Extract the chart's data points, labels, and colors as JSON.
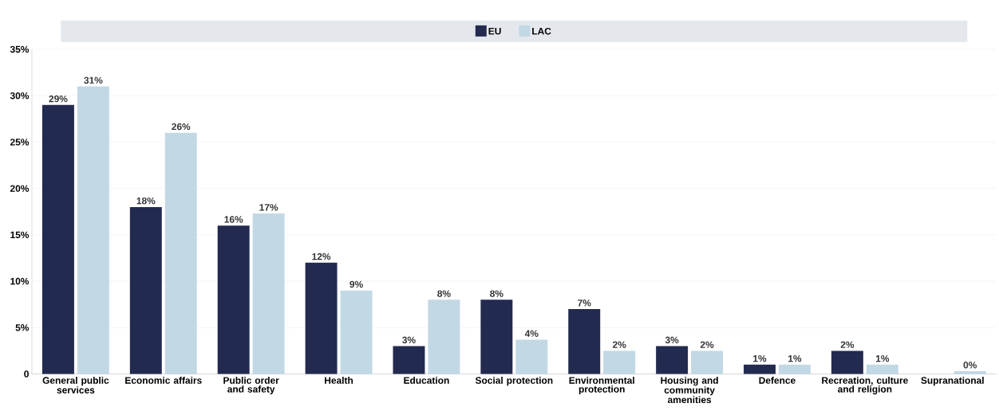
{
  "chart_data": {
    "type": "bar",
    "categories": [
      "General public services",
      "Economic affairs",
      "Public order and safety",
      "Health",
      "Education",
      "Social protection",
      "Environmental protection",
      "Housing and community amenities",
      "Defence",
      "Recreation, culture and religion",
      "Supranational"
    ],
    "series": [
      {
        "name": "EU",
        "color": "#232a4f",
        "values": [
          29,
          18,
          16,
          12,
          3,
          8,
          7,
          3,
          1,
          2.5,
          null
        ],
        "value_labels": [
          "29%",
          "18%",
          "16%",
          "12%",
          "3%",
          "8%",
          "7%",
          "3%",
          "1%",
          "2%",
          null
        ]
      },
      {
        "name": "LAC",
        "color": "#c2d8e5",
        "values": [
          31,
          26,
          17.3,
          9,
          8,
          3.7,
          2.5,
          2.5,
          1,
          1,
          0.3
        ],
        "value_labels": [
          "31%",
          "26%",
          "17%",
          "9%",
          "8%",
          "4%",
          "2%",
          "2%",
          "1%",
          "1%",
          "0%"
        ]
      }
    ],
    "ylim": [
      0,
      35
    ],
    "yticks": [
      {
        "value": 0,
        "label": "0"
      },
      {
        "value": 5,
        "label": "5%"
      },
      {
        "value": 10,
        "label": "10%"
      },
      {
        "value": 15,
        "label": "15%"
      },
      {
        "value": 20,
        "label": "20%"
      },
      {
        "value": 25,
        "label": "25%"
      },
      {
        "value": 30,
        "label": "30%"
      },
      {
        "value": 35,
        "label": "35%"
      }
    ],
    "grid": "y",
    "legend": "top"
  }
}
